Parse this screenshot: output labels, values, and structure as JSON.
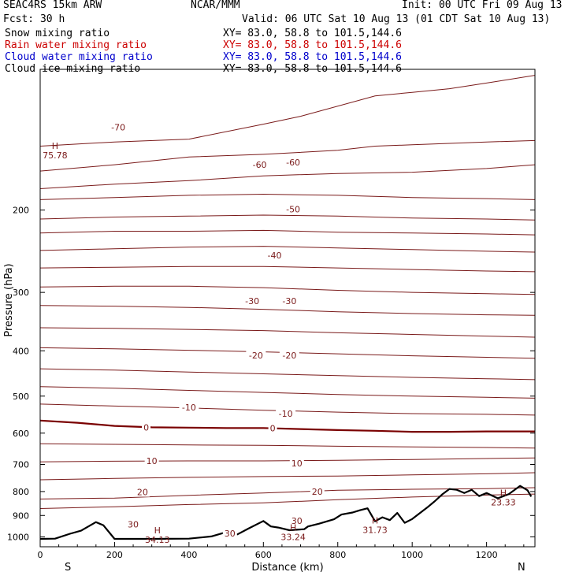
{
  "header": {
    "model": "SEAC4RS 15km ARW",
    "org": "NCAR/MMM",
    "init": "Init: 00 UTC Fri 09 Aug 13",
    "fcst": "Fcst:   30 h",
    "valid": "Valid: 06 UTC Sat 10 Aug 13 (01 CDT Sat 10 Aug 13)"
  },
  "fields": [
    {
      "label": "Snow mixing ratio",
      "xy": "XY=  83.0, 58.8 to 101.5,144.6",
      "color": "#000000"
    },
    {
      "label": "Rain water mixing ratio",
      "xy": "XY=  83.0, 58.8 to 101.5,144.6",
      "color": "#cc0000"
    },
    {
      "label": "Cloud water mixing ratio",
      "xy": "XY=  83.0, 58.8 to 101.5,144.6",
      "color": "#0000cc"
    },
    {
      "label": "Cloud ice mixing ratio",
      "xy": "XY=  83.0, 58.8 to 101.5,144.6",
      "color": "#000000"
    }
  ],
  "colors": {
    "contour": "#7a1a1a",
    "zero_contour": "#7a0000",
    "terrain": "#000000",
    "frame": "#000000"
  },
  "chart_data": {
    "type": "line",
    "title": "",
    "xlabel": "Distance (km)",
    "ylabel": "Pressure (hPa)",
    "xlim": [
      0,
      1330
    ],
    "ylim": [
      1050,
      100
    ],
    "y_scale": "log",
    "x_ticks": [
      "0",
      "200",
      "400",
      "600",
      "800",
      "1000",
      "1200"
    ],
    "y_ticks": [
      "200",
      "300",
      "400",
      "500",
      "600",
      "700",
      "800",
      "900",
      "1000"
    ],
    "end_labels": {
      "left": "S",
      "right": "N"
    },
    "contour_levels": [
      -70,
      -60,
      -50,
      -40,
      -30,
      -20,
      -10,
      0,
      10,
      20,
      30
    ],
    "contour_labels": [
      {
        "text": "-70",
        "x": 210,
        "p": 133
      },
      {
        "text": "-60",
        "x": 590,
        "p": 160
      },
      {
        "text": "-60",
        "x": 680,
        "p": 158
      },
      {
        "text": "-50",
        "x": 680,
        "p": 199
      },
      {
        "text": "-40",
        "x": 630,
        "p": 250
      },
      {
        "text": "-30",
        "x": 570,
        "p": 313
      },
      {
        "text": "-30",
        "x": 670,
        "p": 313
      },
      {
        "text": "-20",
        "x": 580,
        "p": 409
      },
      {
        "text": "-20",
        "x": 670,
        "p": 409
      },
      {
        "text": "-10",
        "x": 400,
        "p": 528
      },
      {
        "text": "-10",
        "x": 660,
        "p": 545
      },
      {
        "text": "0",
        "x": 285,
        "p": 583
      },
      {
        "text": "0",
        "x": 625,
        "p": 586
      },
      {
        "text": "10",
        "x": 300,
        "p": 688
      },
      {
        "text": "10",
        "x": 690,
        "p": 696
      },
      {
        "text": "20",
        "x": 275,
        "p": 802
      },
      {
        "text": "20",
        "x": 745,
        "p": 800
      },
      {
        "text": "30",
        "x": 250,
        "p": 940
      },
      {
        "text": "30",
        "x": 690,
        "p": 923
      },
      {
        "text": "30",
        "x": 510,
        "p": 983
      }
    ],
    "highs": [
      {
        "text": "H",
        "value": "75.78",
        "x": 40,
        "p": 149
      },
      {
        "text": "H",
        "value": "34.13",
        "x": 315,
        "p": 990
      },
      {
        "text": "H",
        "value": "33.24",
        "x": 680,
        "p": 977
      },
      {
        "text": "H",
        "value": "31.73",
        "x": 900,
        "p": 944
      },
      {
        "text": "H",
        "value": "23.33",
        "x": 1245,
        "p": 824
      }
    ],
    "isotherms": [
      {
        "level": null,
        "points": [
          [
            0,
            146
          ],
          [
            200,
            143
          ],
          [
            400,
            141
          ],
          [
            600,
            131
          ],
          [
            700,
            126
          ],
          [
            900,
            114
          ],
          [
            1000,
            112
          ],
          [
            1100,
            110
          ],
          [
            1200,
            107
          ],
          [
            1330,
            103
          ]
        ]
      },
      {
        "level": -70,
        "points": [
          [
            0,
            165
          ],
          [
            200,
            160
          ],
          [
            400,
            154
          ],
          [
            600,
            152
          ],
          [
            800,
            149
          ],
          [
            900,
            146
          ],
          [
            1000,
            145
          ],
          [
            1100,
            144
          ],
          [
            1200,
            143
          ],
          [
            1330,
            142
          ]
        ]
      },
      {
        "level": -60,
        "points": [
          [
            0,
            180
          ],
          [
            200,
            176
          ],
          [
            400,
            173
          ],
          [
            600,
            169
          ],
          [
            800,
            167
          ],
          [
            1000,
            166
          ],
          [
            1200,
            163
          ],
          [
            1330,
            160
          ]
        ]
      },
      {
        "level": null,
        "points": [
          [
            0,
            190
          ],
          [
            200,
            188
          ],
          [
            400,
            186
          ],
          [
            600,
            185
          ],
          [
            800,
            186
          ],
          [
            1000,
            188
          ],
          [
            1200,
            189
          ],
          [
            1330,
            190
          ]
        ]
      },
      {
        "level": -50,
        "points": [
          [
            0,
            209
          ],
          [
            200,
            207
          ],
          [
            400,
            206
          ],
          [
            600,
            205
          ],
          [
            800,
            206
          ],
          [
            1000,
            208
          ],
          [
            1200,
            209
          ],
          [
            1330,
            210
          ]
        ]
      },
      {
        "level": null,
        "points": [
          [
            0,
            224
          ],
          [
            200,
            222
          ],
          [
            400,
            222
          ],
          [
            600,
            221
          ],
          [
            800,
            223
          ],
          [
            1000,
            224
          ],
          [
            1200,
            225
          ],
          [
            1330,
            226
          ]
        ]
      },
      {
        "level": -40,
        "points": [
          [
            0,
            244
          ],
          [
            200,
            242
          ],
          [
            400,
            240
          ],
          [
            600,
            239
          ],
          [
            800,
            241
          ],
          [
            1000,
            243
          ],
          [
            1200,
            245
          ],
          [
            1330,
            246
          ]
        ]
      },
      {
        "level": null,
        "points": [
          [
            0,
            266
          ],
          [
            200,
            265
          ],
          [
            400,
            264
          ],
          [
            600,
            264
          ],
          [
            800,
            266
          ],
          [
            1000,
            268
          ],
          [
            1200,
            270
          ],
          [
            1330,
            271
          ]
        ]
      },
      {
        "level": -30,
        "points": [
          [
            0,
            292
          ],
          [
            200,
            291
          ],
          [
            400,
            291
          ],
          [
            600,
            293
          ],
          [
            800,
            297
          ],
          [
            1000,
            300
          ],
          [
            1200,
            302
          ],
          [
            1330,
            303
          ]
        ]
      },
      {
        "level": null,
        "points": [
          [
            0,
            320
          ],
          [
            200,
            321
          ],
          [
            400,
            323
          ],
          [
            600,
            326
          ],
          [
            800,
            330
          ],
          [
            1000,
            333
          ],
          [
            1200,
            335
          ],
          [
            1330,
            336
          ]
        ]
      },
      {
        "level": -20,
        "points": [
          [
            0,
            357
          ],
          [
            200,
            358
          ],
          [
            400,
            360
          ],
          [
            600,
            362
          ],
          [
            800,
            366
          ],
          [
            1000,
            369
          ],
          [
            1200,
            372
          ],
          [
            1330,
            374
          ]
        ]
      },
      {
        "level": null,
        "points": [
          [
            0,
            394
          ],
          [
            200,
            396
          ],
          [
            400,
            399
          ],
          [
            600,
            402
          ],
          [
            800,
            406
          ],
          [
            1000,
            410
          ],
          [
            1200,
            413
          ],
          [
            1330,
            415
          ]
        ]
      },
      {
        "level": -10,
        "points": [
          [
            0,
            437
          ],
          [
            200,
            440
          ],
          [
            400,
            444
          ],
          [
            600,
            448
          ],
          [
            800,
            452
          ],
          [
            1000,
            456
          ],
          [
            1200,
            459
          ],
          [
            1330,
            461
          ]
        ]
      },
      {
        "level": null,
        "points": [
          [
            0,
            477
          ],
          [
            200,
            481
          ],
          [
            400,
            486
          ],
          [
            600,
            491
          ],
          [
            800,
            496
          ],
          [
            1000,
            500
          ],
          [
            1200,
            503
          ],
          [
            1330,
            505
          ]
        ]
      },
      {
        "level": null,
        "points": [
          [
            0,
            520
          ],
          [
            200,
            525
          ],
          [
            400,
            530
          ],
          [
            600,
            536
          ],
          [
            800,
            541
          ],
          [
            1000,
            545
          ],
          [
            1200,
            547
          ],
          [
            1330,
            549
          ]
        ]
      },
      {
        "level": 0,
        "points": [
          [
            0,
            564
          ],
          [
            100,
            570
          ],
          [
            200,
            579
          ],
          [
            300,
            583
          ],
          [
            400,
            584
          ],
          [
            500,
            585
          ],
          [
            600,
            585
          ],
          [
            700,
            588
          ],
          [
            800,
            591
          ],
          [
            900,
            593
          ],
          [
            1000,
            596
          ],
          [
            1100,
            596
          ],
          [
            1200,
            595
          ],
          [
            1330,
            595
          ]
        ]
      },
      {
        "level": null,
        "points": [
          [
            0,
            632
          ],
          [
            200,
            634
          ],
          [
            400,
            636
          ],
          [
            600,
            637
          ],
          [
            800,
            640
          ],
          [
            1000,
            642
          ],
          [
            1200,
            644
          ],
          [
            1330,
            646
          ]
        ]
      },
      {
        "level": 10,
        "points": [
          [
            0,
            691
          ],
          [
            200,
            689
          ],
          [
            400,
            688
          ],
          [
            600,
            688
          ],
          [
            800,
            686
          ],
          [
            1000,
            683
          ],
          [
            1200,
            680
          ],
          [
            1330,
            678
          ]
        ]
      },
      {
        "level": null,
        "points": [
          [
            0,
            755
          ],
          [
            200,
            750
          ],
          [
            400,
            746
          ],
          [
            600,
            743
          ],
          [
            800,
            741
          ],
          [
            1000,
            737
          ],
          [
            1200,
            733
          ],
          [
            1330,
            729
          ]
        ]
      },
      {
        "level": 20,
        "points": [
          [
            0,
            830
          ],
          [
            200,
            826
          ],
          [
            400,
            815
          ],
          [
            600,
            806
          ],
          [
            800,
            795
          ],
          [
            1000,
            791
          ],
          [
            1200,
            789
          ],
          [
            1330,
            785
          ]
        ]
      },
      {
        "level": null,
        "points": [
          [
            0,
            870
          ],
          [
            200,
            862
          ],
          [
            400,
            853
          ],
          [
            600,
            846
          ],
          [
            800,
            833
          ],
          [
            1000,
            822
          ],
          [
            1200,
            814
          ],
          [
            1330,
            810
          ]
        ]
      }
    ],
    "terrain": [
      [
        0,
        1010
      ],
      [
        40,
        1009
      ],
      [
        80,
        985
      ],
      [
        110,
        970
      ],
      [
        150,
        930
      ],
      [
        170,
        945
      ],
      [
        200,
        1010
      ],
      [
        300,
        1010
      ],
      [
        400,
        1009
      ],
      [
        460,
        998
      ],
      [
        500,
        977
      ],
      [
        530,
        988
      ],
      [
        560,
        960
      ],
      [
        600,
        925
      ],
      [
        620,
        950
      ],
      [
        640,
        955
      ],
      [
        670,
        968
      ],
      [
        710,
        963
      ],
      [
        720,
        950
      ],
      [
        750,
        937
      ],
      [
        790,
        917
      ],
      [
        810,
        896
      ],
      [
        840,
        887
      ],
      [
        860,
        877
      ],
      [
        880,
        869
      ],
      [
        900,
        926
      ],
      [
        920,
        908
      ],
      [
        940,
        921
      ],
      [
        960,
        889
      ],
      [
        980,
        933
      ],
      [
        1000,
        916
      ],
      [
        1040,
        866
      ],
      [
        1060,
        840
      ],
      [
        1080,
        812
      ],
      [
        1100,
        790
      ],
      [
        1120,
        793
      ],
      [
        1140,
        806
      ],
      [
        1160,
        793
      ],
      [
        1180,
        818
      ],
      [
        1200,
        806
      ],
      [
        1230,
        827
      ],
      [
        1260,
        810
      ],
      [
        1290,
        778
      ],
      [
        1310,
        795
      ],
      [
        1320,
        820
      ]
    ]
  }
}
